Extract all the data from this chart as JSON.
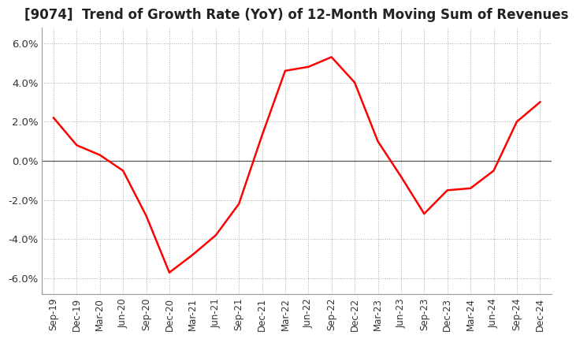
{
  "title": "[9074]  Trend of Growth Rate (YoY) of 12-Month Moving Sum of Revenues",
  "title_fontsize": 12,
  "background_color": "#ffffff",
  "line_color": "#ff0000",
  "ylim": [
    -0.068,
    0.068
  ],
  "yticks": [
    -0.06,
    -0.04,
    -0.02,
    0.0,
    0.02,
    0.04,
    0.06
  ],
  "ytick_labels": [
    "-6.0%",
    "-4.0%",
    "-2.0%",
    "0.0%",
    "2.0%",
    "4.0%",
    "6.0%"
  ],
  "grid_color": "#aaaaaa",
  "dates": [
    "Sep-19",
    "Dec-19",
    "Mar-20",
    "Jun-20",
    "Sep-20",
    "Dec-20",
    "Mar-21",
    "Jun-21",
    "Sep-21",
    "Dec-21",
    "Mar-22",
    "Jun-22",
    "Sep-22",
    "Dec-22",
    "Mar-23",
    "Jun-23",
    "Sep-23",
    "Dec-23",
    "Mar-24",
    "Jun-24",
    "Sep-24",
    "Dec-24"
  ],
  "values": [
    0.022,
    0.008,
    0.003,
    -0.005,
    -0.028,
    -0.057,
    -0.048,
    -0.038,
    -0.022,
    0.013,
    0.046,
    0.048,
    0.053,
    0.04,
    0.01,
    -0.008,
    -0.027,
    -0.015,
    -0.014,
    -0.005,
    0.02,
    0.03
  ]
}
